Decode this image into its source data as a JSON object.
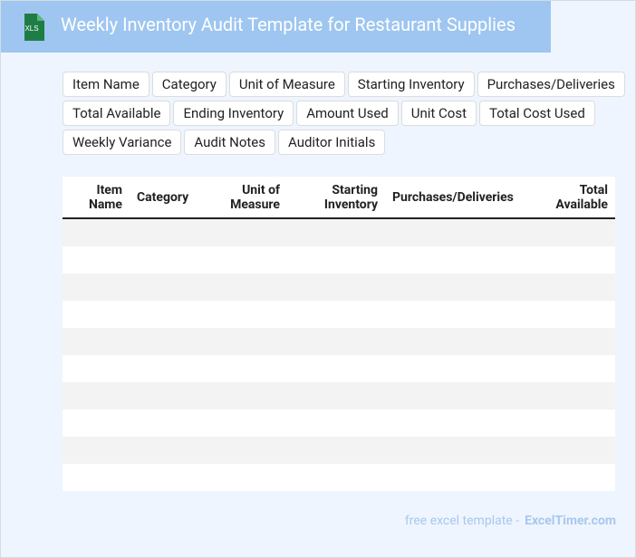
{
  "header": {
    "icon_label": "XLS",
    "title": "Weekly Inventory Audit Template for Restaurant Supplies"
  },
  "tags": [
    "Item Name",
    "Category",
    "Unit of Measure",
    "Starting Inventory",
    "Purchases/Deliveries",
    "Total Available",
    "Ending Inventory",
    "Amount Used",
    "Unit Cost",
    "Total Cost Used",
    "Weekly Variance",
    "Audit Notes",
    "Auditor Initials"
  ],
  "table": {
    "columns": [
      "Item\nName",
      "Category",
      "Unit of\nMeasure",
      "Starting\nInventory",
      "Purchases/Deliveries",
      "Total\nAvailable"
    ]
  },
  "footer": {
    "prefix": "free excel template -",
    "site": "ExcelTimer.com"
  }
}
